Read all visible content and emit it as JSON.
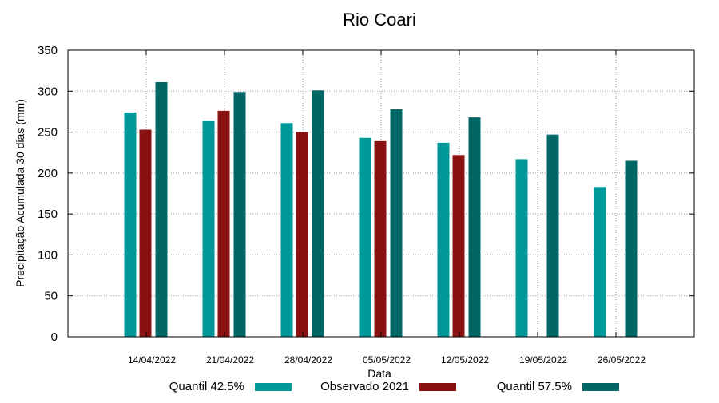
{
  "chart_data": {
    "type": "bar",
    "title": "Rio Coari",
    "xlabel": "Data",
    "ylabel": "Precipitação Acumulada 30 dias (mm)",
    "ylim": [
      0,
      350
    ],
    "yticks": [
      0,
      50,
      100,
      150,
      200,
      250,
      300,
      350
    ],
    "grid": true,
    "legend_position": "bottom",
    "categories": [
      "14/04/2022",
      "21/04/2022",
      "28/04/2022",
      "05/05/2022",
      "12/05/2022",
      "19/05/2022",
      "26/05/2022"
    ],
    "series": [
      {
        "name": "Quantil 42.5%",
        "color": "#009999",
        "values": [
          274,
          264,
          261,
          243,
          237,
          217,
          183
        ]
      },
      {
        "name": "Observado 2021",
        "color": "#8b1010",
        "values": [
          253,
          276,
          250,
          239,
          222,
          null,
          null
        ]
      },
      {
        "name": "Quantil 57.5%",
        "color": "#006666",
        "values": [
          311,
          299,
          301,
          278,
          268,
          247,
          215
        ]
      }
    ]
  }
}
